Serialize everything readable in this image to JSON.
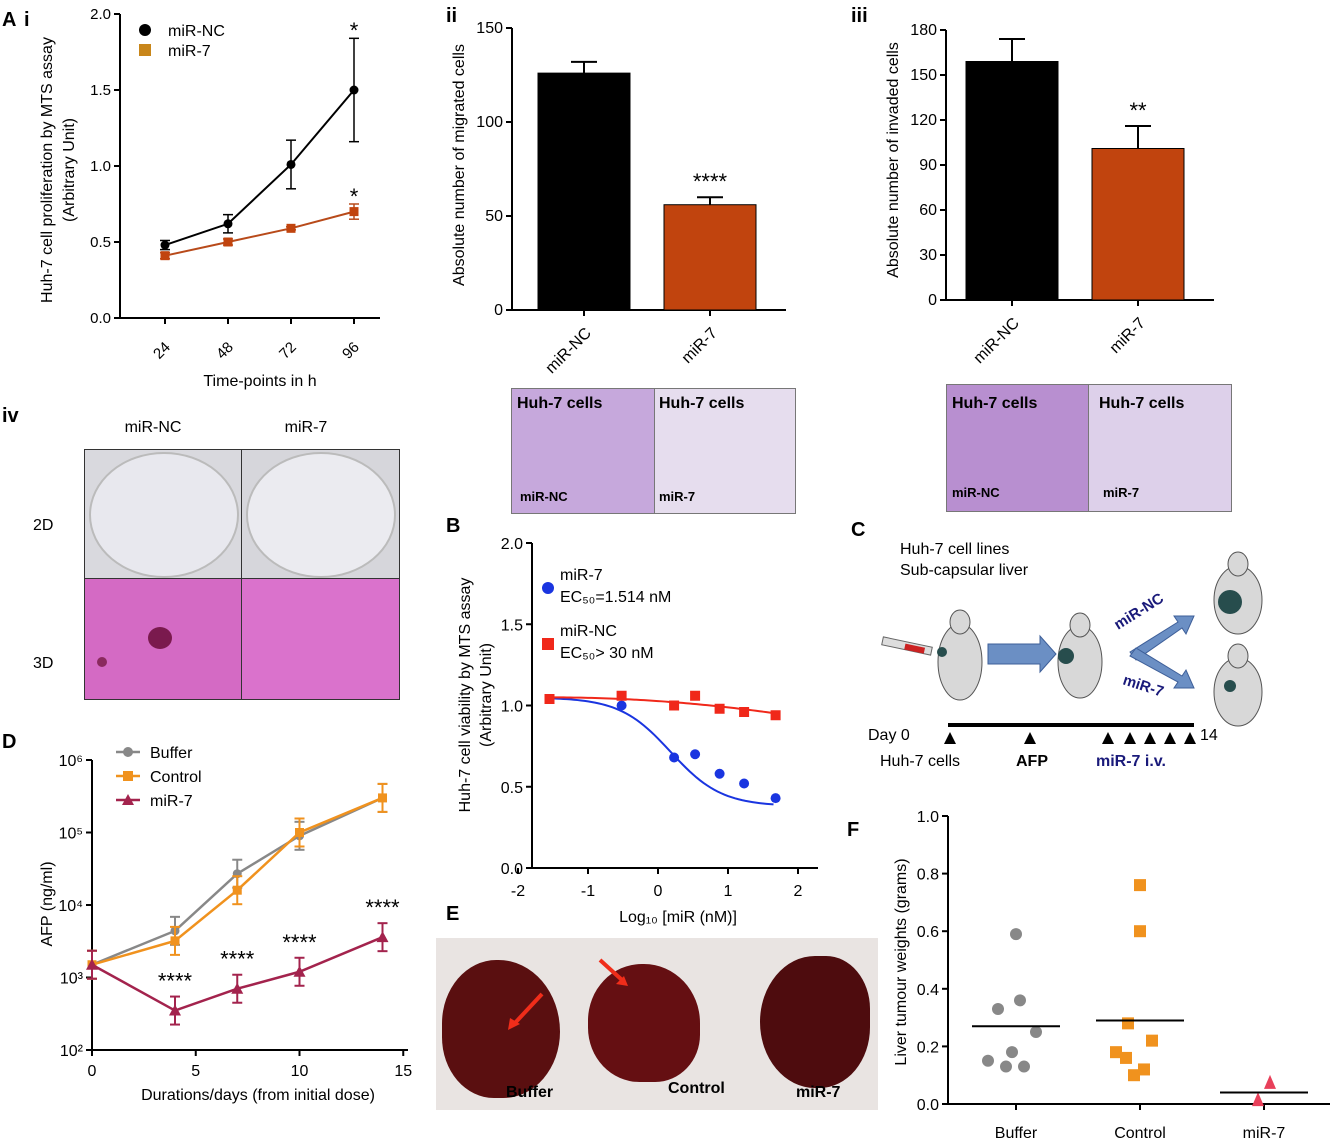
{
  "panel_letters": {
    "A": "A",
    "A_i": "i",
    "A_ii": "ii",
    "A_iii": "iii",
    "A_iv": "iv",
    "B": "B",
    "C": "C",
    "D": "D",
    "E": "E",
    "F": "F"
  },
  "colors": {
    "black": "#000000",
    "orange_red": "#c1440e",
    "miR7_line": "#b84a1a",
    "orange_sq": "#c8861a",
    "blue": "#1a35e0",
    "red": "#f0281a",
    "gray": "#888888",
    "orange": "#f0921e",
    "maroon": "#a3234d"
  },
  "chart_data": [
    {
      "id": "A_i",
      "type": "line",
      "xlabel": "Time-points in h",
      "ylabel": "Huh-7 cell proliferation by MTS assay",
      "ylabel2": "(Arbitrary Unit)",
      "categories": [
        "24",
        "48",
        "72",
        "96"
      ],
      "ylim": [
        0,
        2.0
      ],
      "yticks": [
        "0.0",
        "0.5",
        "1.0",
        "1.5",
        "2.0"
      ],
      "series": [
        {
          "name": "miR-NC",
          "values": [
            0.48,
            0.62,
            1.01,
            1.5
          ],
          "err": [
            0.03,
            0.06,
            0.16,
            0.34
          ]
        },
        {
          "name": "miR-7",
          "values": [
            0.41,
            0.5,
            0.59,
            0.7
          ],
          "err": [
            0.02,
            0.02,
            0.01,
            0.05
          ]
        }
      ],
      "annotations": [
        "*",
        "*"
      ]
    },
    {
      "id": "A_ii",
      "type": "bar",
      "ylabel": "Absolute number of migrated cells",
      "categories": [
        "miR-NC",
        "miR-7"
      ],
      "values": [
        126,
        56
      ],
      "err": [
        6,
        4
      ],
      "ylim": [
        0,
        150
      ],
      "yticks": [
        "0",
        "50",
        "100",
        "150"
      ],
      "annotations": [
        "",
        "****"
      ]
    },
    {
      "id": "A_iii",
      "type": "bar",
      "ylabel": "Absolute number of invaded cells",
      "categories": [
        "miR-NC",
        "miR-7"
      ],
      "values": [
        159,
        101
      ],
      "err": [
        15,
        15
      ],
      "ylim": [
        0,
        180
      ],
      "yticks": [
        "0",
        "30",
        "60",
        "90",
        "120",
        "150",
        "180"
      ],
      "annotations": [
        "",
        "**"
      ]
    },
    {
      "id": "B",
      "type": "scatter",
      "xlabel": "Log₁₀ [miR (nM)]",
      "ylabel": "Huh-7 cell viability by MTS assay",
      "ylabel2": "(Arbitrary Unit)",
      "xlim": [
        -2,
        2
      ],
      "xticks": [
        "-2",
        "-1",
        "0",
        "1",
        "2"
      ],
      "ylim": [
        0,
        2.0
      ],
      "yticks": [
        "0.0",
        "0.5",
        "1.0",
        "1.5",
        "2.0"
      ],
      "series": [
        {
          "name": "miR-7",
          "ec50": "EC₅₀=1.514 nM",
          "x": [
            -1.55,
            -0.52,
            0.23,
            0.53,
            0.88,
            1.23,
            1.68
          ],
          "y": [
            1.04,
            1.0,
            0.68,
            0.7,
            0.58,
            0.52,
            0.43
          ]
        },
        {
          "name": "miR-NC",
          "ec50": "EC₅₀> 30 nM",
          "x": [
            -1.55,
            -0.52,
            0.23,
            0.53,
            0.88,
            1.23,
            1.68
          ],
          "y": [
            1.04,
            1.06,
            1.0,
            1.06,
            0.98,
            0.96,
            0.94
          ]
        }
      ]
    },
    {
      "id": "D",
      "type": "line",
      "xlabel": "Durations/days (from initial dose)",
      "ylabel": "AFP (ng/ml)",
      "xlim": [
        0,
        15
      ],
      "xticks": [
        "0",
        "5",
        "10",
        "15"
      ],
      "yscale": "log",
      "ylim": [
        100,
        1000000
      ],
      "yticks": [
        "10²",
        "10³",
        "10⁴",
        "10⁵",
        "10⁶"
      ],
      "series": [
        {
          "name": "Buffer",
          "x": [
            0,
            4,
            7,
            10,
            14
          ],
          "y": [
            1500,
            4400,
            27000,
            90000,
            300000
          ]
        },
        {
          "name": "Control",
          "x": [
            0,
            4,
            7,
            10,
            14
          ],
          "y": [
            1500,
            3200,
            16000,
            100000,
            300000
          ]
        },
        {
          "name": "miR-7",
          "x": [
            0,
            4,
            7,
            10,
            14
          ],
          "y": [
            1500,
            350,
            700,
            1200,
            3600
          ]
        }
      ],
      "annotations": [
        "****",
        "****",
        "****",
        "****"
      ]
    },
    {
      "id": "F",
      "type": "scatter",
      "ylabel": "Liver tumour weights (grams)",
      "categories": [
        "Buffer",
        "Control",
        "miR-7"
      ],
      "ylim": [
        0,
        1.0
      ],
      "yticks": [
        "0.0",
        "0.2",
        "0.4",
        "0.6",
        "0.8",
        "1.0"
      ],
      "groups": [
        {
          "name": "Buffer",
          "values": [
            0.59,
            0.36,
            0.33,
            0.25,
            0.18,
            0.15,
            0.13,
            0.13
          ],
          "mean": 0.27
        },
        {
          "name": "Control",
          "values": [
            0.76,
            0.6,
            0.28,
            0.22,
            0.18,
            0.16,
            0.12,
            0.1
          ],
          "mean": 0.29
        },
        {
          "name": "miR-7",
          "values": [
            0.07,
            0.01
          ],
          "mean": 0.04
        }
      ]
    }
  ],
  "panel_iv": {
    "col1": "miR-NC",
    "col2": "miR-7",
    "row1": "2D",
    "row2": "3D"
  },
  "micrographs": {
    "title": "Huh-7 cells",
    "left": "miR-NC",
    "right": "miR-7"
  },
  "panel_c": {
    "line1": "Huh-7 cell lines",
    "line2": "Sub-capsular liver",
    "arrow1": "miR-NC",
    "arrow2": "miR-7",
    "day0": "Day 0",
    "day14": "14",
    "t1": "Huh-7 cells",
    "t2": "AFP",
    "t3": "miR-7 i.v."
  },
  "panel_e": {
    "l1": "Buffer",
    "l2": "Control",
    "l3": "miR-7"
  }
}
